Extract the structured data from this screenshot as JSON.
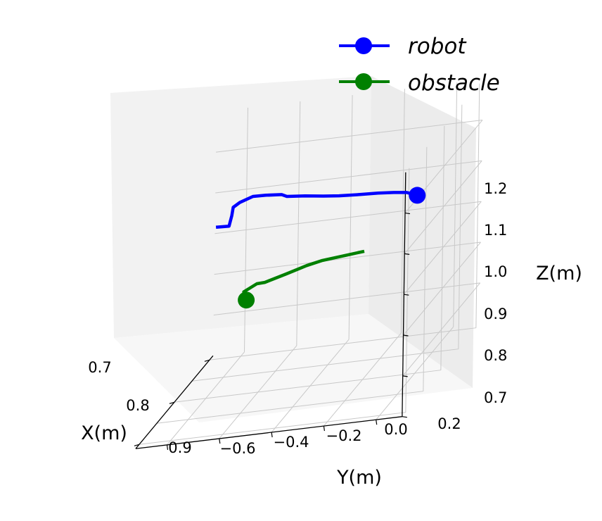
{
  "chart_data": {
    "type": "line3d",
    "title": "",
    "xlabel": "X(m)",
    "ylabel": "Y(m)",
    "zlabel": "Z(m)",
    "x_ticks": [
      "0.7",
      "0.8",
      "0.9"
    ],
    "y_ticks": [
      "−0.6",
      "−0.4",
      "−0.2",
      "0.0",
      "0.2"
    ],
    "z_ticks": [
      "0.7",
      "0.8",
      "0.9",
      "1.0",
      "1.1",
      "1.2"
    ],
    "xlim": [
      0.69,
      0.91
    ],
    "ylim": [
      -0.72,
      0.3
    ],
    "zlim": [
      0.7,
      1.3
    ],
    "grid": true,
    "legend_position": "top-right",
    "series": [
      {
        "name": "robot",
        "color": "#0000ff",
        "marker": "circle-at-end",
        "x": [
          0.8,
          0.8,
          0.8,
          0.8,
          0.8,
          0.8,
          0.8,
          0.8,
          0.8,
          0.8,
          0.8,
          0.8,
          0.8,
          0.8,
          0.8,
          0.8,
          0.8
        ],
        "y": [
          -0.57,
          -0.52,
          -0.51,
          -0.505,
          -0.48,
          -0.43,
          -0.38,
          -0.32,
          -0.3,
          -0.23,
          -0.16,
          -0.1,
          -0.02,
          0.05,
          0.11,
          0.16,
          0.2
        ],
        "z": [
          1.118,
          1.117,
          1.142,
          1.162,
          1.172,
          1.183,
          1.182,
          1.179,
          1.173,
          1.169,
          1.163,
          1.159,
          1.156,
          1.154,
          1.151,
          1.147,
          1.137
        ]
      },
      {
        "name": "obstacle",
        "color": "#008000",
        "marker": "circle-at-end",
        "x": [
          0.8,
          0.8,
          0.8,
          0.8,
          0.8,
          0.8,
          0.8,
          0.8,
          0.8,
          0.8
        ],
        "y": [
          -0.45,
          -0.44,
          -0.46,
          -0.41,
          -0.38,
          -0.3,
          -0.22,
          -0.16,
          -0.08,
          0.0
        ],
        "z": [
          0.93,
          0.94,
          0.951,
          0.967,
          0.968,
          0.982,
          0.997,
          1.005,
          1.01,
          1.015
        ]
      }
    ]
  }
}
